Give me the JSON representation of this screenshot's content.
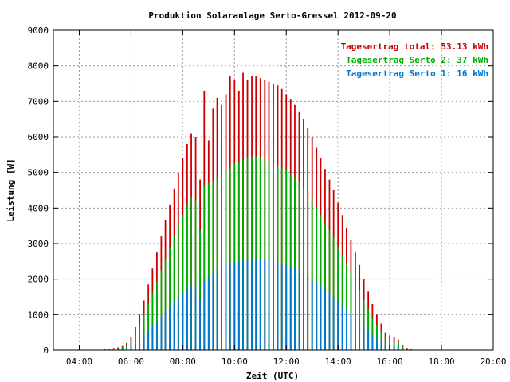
{
  "chart_data": {
    "type": "bar",
    "title": "Produktion Solaranlage Serto-Gressel 2012-09-20",
    "xlabel": "Zeit (UTC)",
    "ylabel": "Leistung [W]",
    "xlim": [
      3.0,
      20.0
    ],
    "ylim": [
      0,
      9000
    ],
    "x_ticks": [
      "04:00",
      "06:00",
      "08:00",
      "10:00",
      "12:00",
      "14:00",
      "16:00",
      "18:00",
      "20:00"
    ],
    "y_ticks": [
      "0",
      "1000",
      "2000",
      "3000",
      "4000",
      "5000",
      "6000",
      "7000",
      "8000",
      "9000"
    ],
    "grid": true,
    "legend_position": "top-right",
    "x_unit": "hours (UTC)",
    "x": [
      5.0,
      5.17,
      5.33,
      5.5,
      5.67,
      5.83,
      6.0,
      6.17,
      6.33,
      6.5,
      6.67,
      6.83,
      7.0,
      7.17,
      7.33,
      7.5,
      7.67,
      7.83,
      8.0,
      8.17,
      8.33,
      8.5,
      8.67,
      8.83,
      9.0,
      9.17,
      9.33,
      9.5,
      9.67,
      9.83,
      10.0,
      10.17,
      10.33,
      10.5,
      10.67,
      10.83,
      11.0,
      11.17,
      11.33,
      11.5,
      11.67,
      11.83,
      12.0,
      12.17,
      12.33,
      12.5,
      12.67,
      12.83,
      13.0,
      13.17,
      13.33,
      13.5,
      13.67,
      13.83,
      14.0,
      14.17,
      14.33,
      14.5,
      14.67,
      14.83,
      15.0,
      15.17,
      15.33,
      15.5,
      15.67,
      15.83,
      16.0,
      16.17,
      16.33,
      16.5,
      16.67,
      16.83,
      17.0,
      17.17
    ],
    "series": [
      {
        "name": "Tagesertrag total: 53.13 kWh",
        "color": "#cc0000",
        "values": [
          20,
          40,
          60,
          80,
          120,
          200,
          380,
          650,
          1000,
          1400,
          1850,
          2300,
          2750,
          3200,
          3650,
          4100,
          4550,
          5000,
          5400,
          5800,
          6100,
          6000,
          4800,
          7300,
          5900,
          6800,
          7100,
          6900,
          7200,
          7700,
          7600,
          7300,
          7800,
          7600,
          7700,
          7700,
          7650,
          7600,
          7550,
          7500,
          7450,
          7350,
          7200,
          7050,
          6900,
          6700,
          6500,
          6250,
          6000,
          5700,
          5400,
          5100,
          4800,
          4500,
          4150,
          3800,
          3450,
          3100,
          2750,
          2400,
          2000,
          1650,
          1300,
          1000,
          750,
          500,
          420,
          380,
          300,
          150,
          60,
          20,
          0,
          0
        ]
      },
      {
        "name": "Tagesertrag Serto 2: 37 kWh",
        "color": "#00aa00",
        "values": [
          15,
          28,
          42,
          56,
          85,
          140,
          270,
          460,
          700,
          990,
          1300,
          1620,
          1940,
          2250,
          2570,
          2890,
          3200,
          3520,
          3800,
          4080,
          4300,
          4220,
          3380,
          4620,
          4700,
          4780,
          4850,
          4950,
          5050,
          5150,
          5250,
          5280,
          5350,
          5400,
          5450,
          5450,
          5420,
          5380,
          5330,
          5280,
          5220,
          5150,
          5060,
          4960,
          4850,
          4720,
          4580,
          4400,
          4220,
          4010,
          3800,
          3590,
          3380,
          3170,
          2920,
          2680,
          2430,
          2180,
          1940,
          1690,
          1410,
          1160,
          920,
          700,
          530,
          350,
          300,
          270,
          210,
          105,
          42,
          14,
          0,
          0
        ]
      },
      {
        "name": "Tagesertrag Serto 1: 16 kWh",
        "color": "#0077cc",
        "values": [
          5,
          12,
          18,
          24,
          35,
          60,
          110,
          190,
          300,
          410,
          550,
          680,
          810,
          950,
          1080,
          1210,
          1350,
          1480,
          1600,
          1720,
          1800,
          1780,
          1420,
          1940,
          2060,
          2180,
          2300,
          2380,
          2420,
          2450,
          2480,
          2500,
          2520,
          2540,
          2550,
          2550,
          2540,
          2530,
          2520,
          2500,
          2470,
          2440,
          2400,
          2350,
          2300,
          2240,
          2170,
          2090,
          2000,
          1900,
          1800,
          1700,
          1600,
          1500,
          1380,
          1270,
          1150,
          1030,
          920,
          800,
          670,
          550,
          430,
          330,
          250,
          170,
          140,
          120,
          100,
          50,
          20,
          6,
          0,
          0
        ]
      }
    ]
  },
  "colors": {
    "grid": "#999999",
    "axis": "#000000"
  }
}
